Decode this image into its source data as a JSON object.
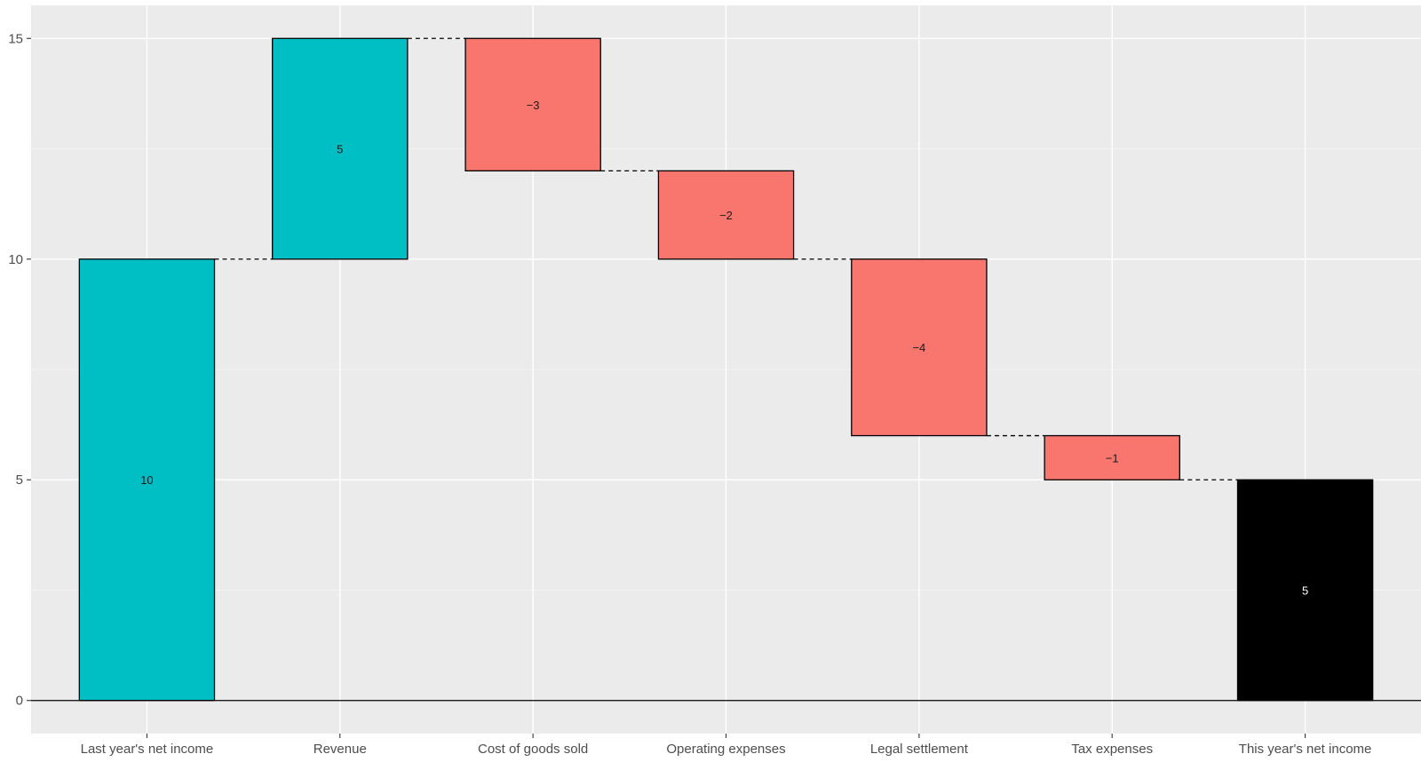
{
  "chart_data": {
    "type": "waterfall",
    "categories": [
      "Last year's net income",
      "Revenue",
      "Cost of goods sold",
      "Operating expenses",
      "Legal settlement",
      "Tax expenses",
      "This year's net income"
    ],
    "values": [
      10,
      5,
      -3,
      -2,
      -4,
      -1,
      5
    ],
    "labels": [
      "10",
      "5",
      "−3",
      "−2",
      "−4",
      "−1",
      "5"
    ],
    "bar_kind": [
      "total",
      "increase",
      "decrease",
      "decrease",
      "decrease",
      "decrease",
      "total"
    ],
    "ylim": [
      -0.75,
      15.75
    ],
    "y_ticks": [
      0,
      5,
      10,
      15
    ],
    "y_tick_labels": [
      "0",
      "5",
      "10",
      "15"
    ],
    "grid": true,
    "title": "",
    "xlabel": "",
    "ylabel": "",
    "colors": {
      "increase": "#00BFC4",
      "decrease": "#F8766D",
      "final_total": "#000000",
      "panel_background": "#EBEBEB",
      "gridline": "#FFFFFF",
      "outline": "#000000",
      "final_label": "#FFFFFF"
    }
  }
}
